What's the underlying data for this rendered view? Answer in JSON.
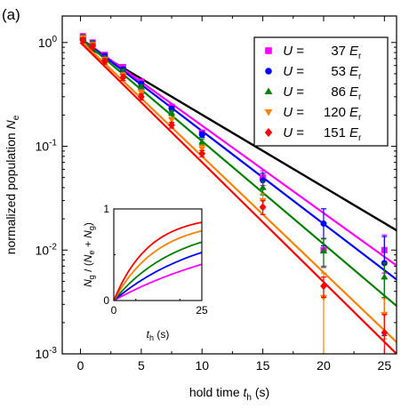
{
  "panel_label": "(a)",
  "colors": {
    "U37": "#ff00ff",
    "U53": "#0000ff",
    "U86": "#008000",
    "U120": "#ff8000",
    "U151": "#ff0000",
    "reference": "#000000"
  },
  "chart_data": [
    {
      "type": "scatter",
      "title": "",
      "xlabel_parts": [
        "hold time ",
        "t",
        "h",
        " (s)"
      ],
      "ylabel_parts": [
        "normalized population ",
        "N",
        "e"
      ],
      "xlim": [
        -1.5,
        26
      ],
      "ylim": [
        0.001,
        1.8
      ],
      "yscale": "log",
      "xticks": [
        0,
        5,
        10,
        15,
        20,
        25
      ],
      "xtick_labels": [
        "0",
        "5",
        "10",
        "15",
        "20",
        "25"
      ],
      "yticks": [
        0.001,
        0.01,
        0.1,
        1
      ],
      "ytick_labels": [
        {
          "base": "10",
          "exp": "-3"
        },
        {
          "base": "10",
          "exp": "-2"
        },
        {
          "base": "10",
          "exp": "-1"
        },
        {
          "base": "10",
          "exp": "0"
        }
      ],
      "grid": false,
      "legend_position": "top-right",
      "reference_line": {
        "x": [
          0,
          26
        ],
        "y": [
          1.0,
          0.0155
        ]
      },
      "series": [
        {
          "name_parts": [
            "U",
            " = ",
            "37",
            "E",
            "r"
          ],
          "color_key": "U37",
          "marker": "square",
          "x": [
            0.2,
            1,
            2,
            3.5,
            5,
            7.5,
            10,
            15,
            20,
            25
          ],
          "y": [
            1.15,
            1.0,
            0.76,
            0.58,
            0.42,
            0.24,
            0.135,
            0.05,
            0.01,
            0.01
          ],
          "err": [
            0.06,
            0.05,
            0.04,
            0.03,
            0.02,
            0.012,
            0.008,
            0.008,
            0.003,
            0.004
          ],
          "fit": {
            "x": [
              0,
              26
            ],
            "y": [
              1.1,
              0.0071
            ]
          }
        },
        {
          "name_parts": [
            "U",
            " = ",
            "53",
            "E",
            "r"
          ],
          "color_key": "U53",
          "marker": "circle",
          "x": [
            0.2,
            1,
            2,
            3.5,
            5,
            7.5,
            10,
            15,
            20,
            25
          ],
          "y": [
            1.1,
            0.98,
            0.74,
            0.55,
            0.4,
            0.23,
            0.13,
            0.047,
            0.018,
            0.0075
          ],
          "err": [
            0.06,
            0.05,
            0.04,
            0.03,
            0.02,
            0.012,
            0.008,
            0.008,
            0.007,
            0.006
          ],
          "fit": {
            "x": [
              0,
              26
            ],
            "y": [
              1.1,
              0.0052
            ]
          }
        },
        {
          "name_parts": [
            "U",
            " = ",
            "86",
            "E",
            "r"
          ],
          "color_key": "U86",
          "marker": "triangle-up",
          "x": [
            0.2,
            1,
            2,
            3.5,
            5,
            7.5,
            10,
            15,
            20,
            25
          ],
          "y": [
            1.12,
            0.97,
            0.7,
            0.52,
            0.37,
            0.21,
            0.11,
            0.04,
            0.0098,
            0.0055
          ],
          "err": [
            0.06,
            0.05,
            0.04,
            0.03,
            0.02,
            0.012,
            0.008,
            0.006,
            0.003,
            0.002
          ],
          "fit": {
            "x": [
              0,
              26
            ],
            "y": [
              1.1,
              0.0029
            ]
          }
        },
        {
          "name_parts": [
            "U",
            " = ",
            "120",
            "E",
            "r"
          ],
          "color_key": "U120",
          "marker": "triangle-down",
          "x": [
            0.2,
            1,
            2,
            3.5,
            5,
            7.5,
            10,
            15,
            20,
            25
          ],
          "y": [
            1.1,
            0.95,
            0.68,
            0.48,
            0.33,
            0.18,
            0.095,
            0.03,
            0.0035,
            0.0024
          ],
          "err": [
            0.06,
            0.05,
            0.04,
            0.03,
            0.02,
            0.01,
            0.008,
            0.005,
            0.0025,
            0.001
          ],
          "fit": {
            "x": [
              0,
              26
            ],
            "y": [
              1.05,
              0.0013
            ]
          }
        },
        {
          "name_parts": [
            "U",
            " = ",
            "151",
            "E",
            "r"
          ],
          "color_key": "U151",
          "marker": "diamond",
          "x": [
            0.2,
            1,
            2,
            3.5,
            5,
            7.5,
            10,
            15,
            20,
            25
          ],
          "y": [
            1.05,
            0.92,
            0.66,
            0.46,
            0.3,
            0.16,
            0.085,
            0.026,
            0.0045,
            0.0016
          ],
          "err": [
            0.06,
            0.05,
            0.04,
            0.03,
            0.02,
            0.01,
            0.006,
            0.004,
            0.001,
            0.0008
          ],
          "fit": {
            "x": [
              0,
              26
            ],
            "y": [
              1.0,
              0.001
            ]
          }
        }
      ]
    },
    {
      "type": "line",
      "title": "",
      "xlabel_parts": [
        "t",
        "h",
        " (s)"
      ],
      "ylabel_parts": [
        "N",
        "g",
        " / (",
        "N",
        "e",
        " + ",
        "N",
        "g",
        ")"
      ],
      "xlim": [
        0,
        25
      ],
      "ylim": [
        0,
        1
      ],
      "xticks": [
        0,
        25
      ],
      "xtick_labels": [
        "0",
        "25"
      ],
      "yticks": [
        0,
        1
      ],
      "ytick_labels": [
        "0",
        "1"
      ],
      "grid": false,
      "series": [
        {
          "color_key": "U37",
          "asymptote": 0.85,
          "tau": 40
        },
        {
          "color_key": "U53",
          "asymptote": 0.85,
          "tau": 26
        },
        {
          "color_key": "U86",
          "asymptote": 0.85,
          "tau": 18
        },
        {
          "color_key": "U120",
          "asymptote": 0.88,
          "tau": 12.5
        },
        {
          "color_key": "U151",
          "asymptote": 0.93,
          "tau": 10
        }
      ]
    }
  ]
}
